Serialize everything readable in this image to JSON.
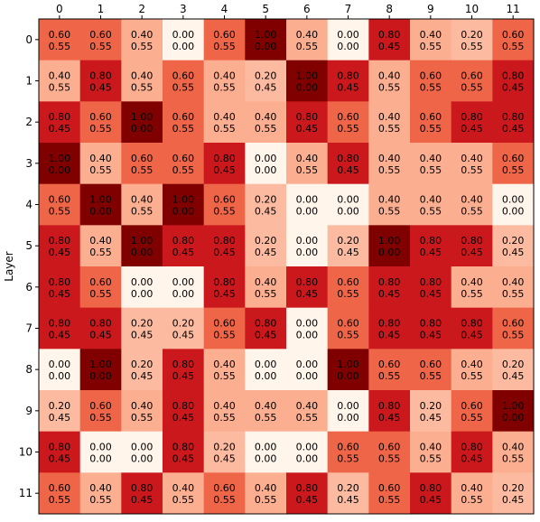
{
  "chart_data": {
    "type": "heatmap",
    "title": "",
    "xlabel": "",
    "ylabel": "Layer",
    "x_ticks": [
      "0",
      "1",
      "2",
      "3",
      "4",
      "5",
      "6",
      "7",
      "8",
      "9",
      "10",
      "11"
    ],
    "y_ticks": [
      "0",
      "1",
      "2",
      "3",
      "4",
      "5",
      "6",
      "7",
      "8",
      "9",
      "10",
      "11"
    ],
    "x_axis_position": "top",
    "colormap": "Reds",
    "vmin": 0,
    "vmax": 1,
    "values": [
      [
        0.6,
        0.6,
        0.4,
        0.0,
        0.6,
        1.0,
        0.4,
        0.0,
        0.8,
        0.4,
        0.2,
        0.6
      ],
      [
        0.4,
        0.8,
        0.4,
        0.6,
        0.4,
        0.2,
        1.0,
        0.8,
        0.4,
        0.6,
        0.6,
        0.8
      ],
      [
        0.8,
        0.6,
        1.0,
        0.6,
        0.4,
        0.4,
        0.8,
        0.6,
        0.4,
        0.6,
        0.8,
        0.8
      ],
      [
        1.0,
        0.4,
        0.6,
        0.6,
        0.8,
        0.0,
        0.4,
        0.8,
        0.4,
        0.4,
        0.4,
        0.6
      ],
      [
        0.6,
        1.0,
        0.4,
        1.0,
        0.6,
        0.2,
        0.0,
        0.0,
        0.4,
        0.4,
        0.4,
        0.0
      ],
      [
        0.8,
        0.4,
        1.0,
        0.8,
        0.8,
        0.2,
        0.0,
        0.2,
        1.0,
        0.8,
        0.8,
        0.2
      ],
      [
        0.8,
        0.6,
        0.0,
        0.0,
        0.8,
        0.4,
        0.8,
        0.6,
        0.8,
        0.8,
        0.4,
        0.4
      ],
      [
        0.8,
        0.8,
        0.2,
        0.2,
        0.6,
        0.8,
        0.0,
        0.6,
        0.8,
        0.8,
        0.8,
        0.6
      ],
      [
        0.0,
        1.0,
        0.2,
        0.8,
        0.4,
        0.0,
        0.0,
        1.0,
        0.6,
        0.6,
        0.4,
        0.2
      ],
      [
        0.2,
        0.6,
        0.4,
        0.8,
        0.4,
        0.4,
        0.4,
        0.0,
        0.8,
        0.2,
        0.6,
        1.0
      ],
      [
        0.8,
        0.0,
        0.0,
        0.8,
        0.2,
        0.0,
        0.0,
        0.6,
        0.6,
        0.4,
        0.8,
        0.4
      ],
      [
        0.6,
        0.4,
        0.8,
        0.4,
        0.6,
        0.4,
        0.8,
        0.2,
        0.6,
        0.8,
        0.4,
        0.2
      ]
    ],
    "secondary_values": [
      [
        0.55,
        0.55,
        0.55,
        0.0,
        0.55,
        0.0,
        0.55,
        0.0,
        0.45,
        0.55,
        0.55,
        0.55
      ],
      [
        0.55,
        0.45,
        0.55,
        0.55,
        0.55,
        0.45,
        0.0,
        0.45,
        0.55,
        0.55,
        0.55,
        0.45
      ],
      [
        0.45,
        0.55,
        0.0,
        0.55,
        0.55,
        0.55,
        0.45,
        0.55,
        0.55,
        0.55,
        0.45,
        0.45
      ],
      [
        0.0,
        0.55,
        0.55,
        0.55,
        0.45,
        0.0,
        0.55,
        0.45,
        0.55,
        0.55,
        0.55,
        0.55
      ],
      [
        0.55,
        0.0,
        0.55,
        0.0,
        0.55,
        0.45,
        0.0,
        0.0,
        0.55,
        0.55,
        0.55,
        0.0
      ],
      [
        0.45,
        0.55,
        0.0,
        0.45,
        0.45,
        0.45,
        0.0,
        0.45,
        0.0,
        0.45,
        0.45,
        0.45
      ],
      [
        0.45,
        0.55,
        0.0,
        0.0,
        0.45,
        0.55,
        0.45,
        0.55,
        0.45,
        0.45,
        0.55,
        0.55
      ],
      [
        0.45,
        0.45,
        0.45,
        0.45,
        0.55,
        0.45,
        0.0,
        0.55,
        0.45,
        0.45,
        0.45,
        0.55
      ],
      [
        0.0,
        0.0,
        0.45,
        0.45,
        0.55,
        0.0,
        0.0,
        0.0,
        0.55,
        0.55,
        0.55,
        0.45
      ],
      [
        0.45,
        0.55,
        0.55,
        0.45,
        0.55,
        0.55,
        0.55,
        0.0,
        0.45,
        0.45,
        0.55,
        0.0
      ],
      [
        0.45,
        0.0,
        0.0,
        0.45,
        0.45,
        0.0,
        0.0,
        0.55,
        0.55,
        0.55,
        0.45,
        0.55
      ],
      [
        0.55,
        0.55,
        0.45,
        0.55,
        0.55,
        0.55,
        0.45,
        0.45,
        0.55,
        0.45,
        0.55,
        0.45
      ]
    ],
    "grid": false,
    "legend": "none"
  }
}
